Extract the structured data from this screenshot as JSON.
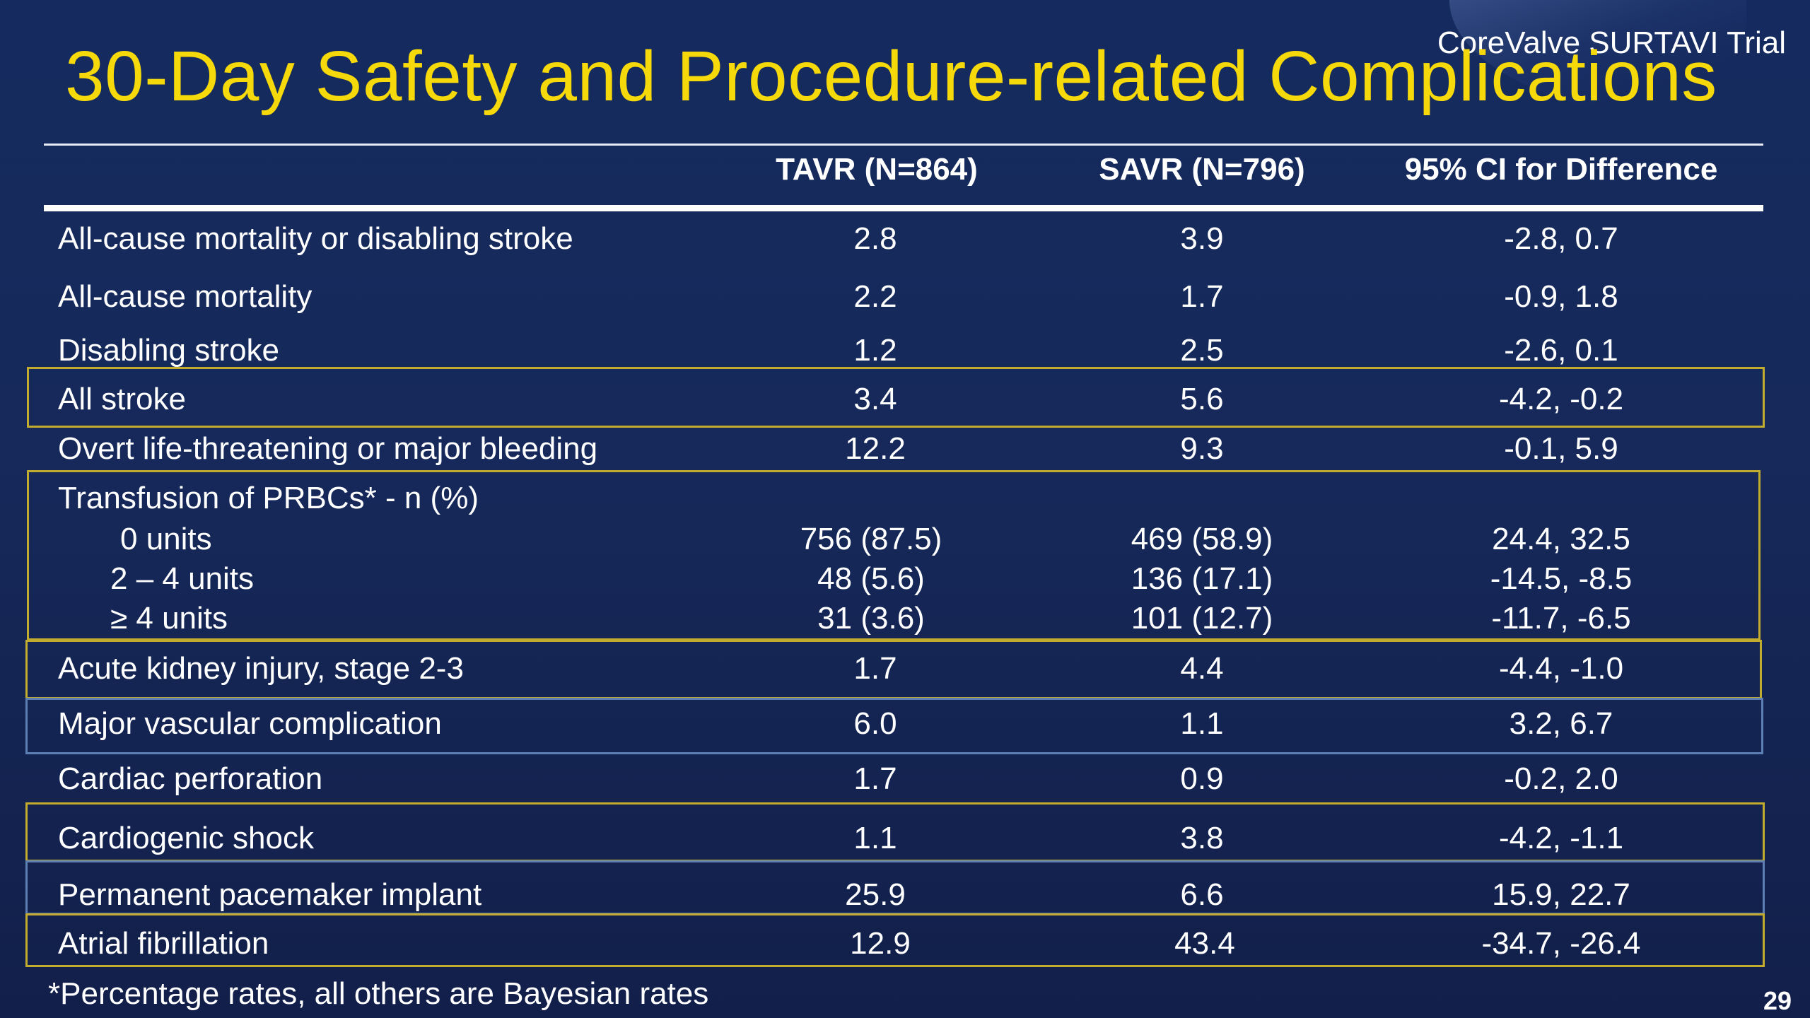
{
  "header": {
    "title": "30-Day Safety and Procedure-related Complications",
    "trial_name": "CoreValve SURTAVI Trial"
  },
  "table": {
    "columns": [
      "TAVR (N=864)",
      "SAVR (N=796)",
      "95% CI for Difference"
    ],
    "rows": [
      {
        "label": "All-cause mortality or disabling stroke",
        "tavr": "2.8",
        "savr": "3.9",
        "ci": "-2.8, 0.7"
      },
      {
        "label": "All-cause mortality",
        "tavr": "2.2",
        "savr": "1.7",
        "ci": "-0.9, 1.8"
      },
      {
        "label": "Disabling stroke",
        "tavr": "1.2",
        "savr": "2.5",
        "ci": "-2.6, 0.1"
      },
      {
        "label": "All stroke",
        "tavr": "3.4",
        "savr": "5.6",
        "ci": "-4.2, -0.2"
      },
      {
        "label": "Overt  life-threatening or major bleeding",
        "tavr": "12.2",
        "savr": "9.3",
        "ci": "-0.1, 5.9"
      },
      {
        "label": "Transfusion of PRBCs* - n (%)",
        "tavr": "",
        "savr": "",
        "ci": ""
      },
      {
        "label": "0 units",
        "tavr": "756 (87.5)",
        "savr": "469 (58.9)",
        "ci": "24.4, 32.5"
      },
      {
        "label": "2 – 4 units",
        "tavr": "48 (5.6)",
        "savr": "136 (17.1)",
        "ci": "-14.5, -8.5"
      },
      {
        "label": "≥ 4 units",
        "tavr": "31 (3.6)",
        "savr": "101 (12.7)",
        "ci": "-11.7, -6.5"
      },
      {
        "label": "Acute kidney injury, stage 2-3",
        "tavr": "1.7",
        "savr": "4.4",
        "ci": "-4.4, -1.0"
      },
      {
        "label": "Major vascular complication",
        "tavr": "6.0",
        "savr": "1.1",
        "ci": "3.2, 6.7"
      },
      {
        "label": "Cardiac perforation",
        "tavr": "1.7",
        "savr": "0.9",
        "ci": "-0.2, 2.0"
      },
      {
        "label": "Cardiogenic shock",
        "tavr": "1.1",
        "savr": "3.8",
        "ci": "-4.2, -1.1"
      },
      {
        "label": "Permanent pacemaker implant",
        "tavr": "25.9",
        "savr": "6.6",
        "ci": "15.9, 22.7"
      },
      {
        "label": "Atrial fibrillation",
        "tavr": "12.9",
        "savr": "43.4",
        "ci": "-34.7, -26.4"
      }
    ]
  },
  "footnote": "*Percentage rates, all others are Bayesian rates",
  "page_number": "29",
  "colors": {
    "title": "#f5d90a",
    "background": "#152a5e",
    "highlight_box": "#c2ac2e",
    "highlight_box_blue": "#5d7fb4"
  }
}
